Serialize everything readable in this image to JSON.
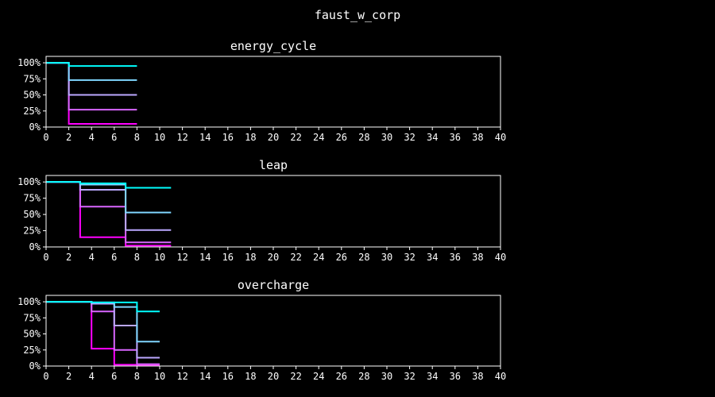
{
  "figure_title": "faust_w_corp",
  "colors": {
    "background": "#000000",
    "axes": "#ffffff",
    "series_gradient": [
      "#ff00ff",
      "#cc88ff",
      "#aac8ff",
      "#00ffff"
    ]
  },
  "chart_data": [
    {
      "type": "line",
      "step": true,
      "title": "energy_cycle",
      "xlabel": "",
      "ylabel": "",
      "xlim": [
        0,
        40
      ],
      "ylim": [
        0,
        1.1
      ],
      "xticks": [
        "0",
        "2",
        "4",
        "6",
        "8",
        "10",
        "12",
        "14",
        "16",
        "18",
        "20",
        "22",
        "24",
        "26",
        "28",
        "30",
        "32",
        "34",
        "36",
        "38",
        "40"
      ],
      "yticks": [
        "0%",
        "25%",
        "50%",
        "75%",
        "100%"
      ],
      "grid": false,
      "series": [
        {
          "x": [
            0,
            2,
            8
          ],
          "y": [
            1.0,
            0.05,
            0.05
          ]
        },
        {
          "x": [
            0,
            2,
            8
          ],
          "y": [
            1.0,
            0.27,
            0.27
          ]
        },
        {
          "x": [
            0,
            2,
            8
          ],
          "y": [
            1.0,
            0.5,
            0.5
          ]
        },
        {
          "x": [
            0,
            2,
            8
          ],
          "y": [
            1.0,
            0.73,
            0.73
          ]
        },
        {
          "x": [
            0,
            2,
            8
          ],
          "y": [
            1.0,
            0.95,
            0.95
          ]
        }
      ]
    },
    {
      "type": "line",
      "step": true,
      "title": "leap",
      "xlabel": "",
      "ylabel": "",
      "xlim": [
        0,
        40
      ],
      "ylim": [
        0,
        1.1
      ],
      "xticks": [
        "0",
        "2",
        "4",
        "6",
        "8",
        "10",
        "12",
        "14",
        "16",
        "18",
        "20",
        "22",
        "24",
        "26",
        "28",
        "30",
        "32",
        "34",
        "36",
        "38",
        "40"
      ],
      "yticks": [
        "0%",
        "25%",
        "50%",
        "75%",
        "100%"
      ],
      "grid": false,
      "series": [
        {
          "x": [
            0,
            3,
            7,
            11
          ],
          "y": [
            1.0,
            0.15,
            0.02,
            0.02
          ]
        },
        {
          "x": [
            0,
            3,
            7,
            11
          ],
          "y": [
            1.0,
            0.62,
            0.07,
            0.07
          ]
        },
        {
          "x": [
            0,
            3,
            7,
            11
          ],
          "y": [
            1.0,
            0.88,
            0.26,
            0.26
          ]
        },
        {
          "x": [
            0,
            3,
            7,
            11
          ],
          "y": [
            1.0,
            0.96,
            0.53,
            0.53
          ]
        },
        {
          "x": [
            0,
            3,
            7,
            11
          ],
          "y": [
            1.0,
            0.98,
            0.91,
            0.91
          ]
        }
      ]
    },
    {
      "type": "line",
      "step": true,
      "title": "overcharge",
      "xlabel": "",
      "ylabel": "",
      "xlim": [
        0,
        40
      ],
      "ylim": [
        0,
        1.1
      ],
      "xticks": [
        "0",
        "2",
        "4",
        "6",
        "8",
        "10",
        "12",
        "14",
        "16",
        "18",
        "20",
        "22",
        "24",
        "26",
        "28",
        "30",
        "32",
        "34",
        "36",
        "38",
        "40"
      ],
      "yticks": [
        "0%",
        "25%",
        "50%",
        "75%",
        "100%"
      ],
      "grid": false,
      "series": [
        {
          "x": [
            0,
            4,
            6,
            8,
            10
          ],
          "y": [
            1.0,
            0.27,
            0.02,
            0.01,
            0.01
          ]
        },
        {
          "x": [
            0,
            4,
            6,
            8,
            10
          ],
          "y": [
            1.0,
            0.85,
            0.25,
            0.03,
            0.03
          ]
        },
        {
          "x": [
            0,
            4,
            6,
            8,
            10
          ],
          "y": [
            1.0,
            0.97,
            0.63,
            0.13,
            0.13
          ]
        },
        {
          "x": [
            0,
            4,
            6,
            8,
            10
          ],
          "y": [
            1.0,
            0.99,
            0.92,
            0.38,
            0.38
          ]
        },
        {
          "x": [
            0,
            4,
            6,
            8,
            10
          ],
          "y": [
            1.0,
            0.99,
            0.99,
            0.85,
            0.85
          ]
        }
      ]
    }
  ]
}
